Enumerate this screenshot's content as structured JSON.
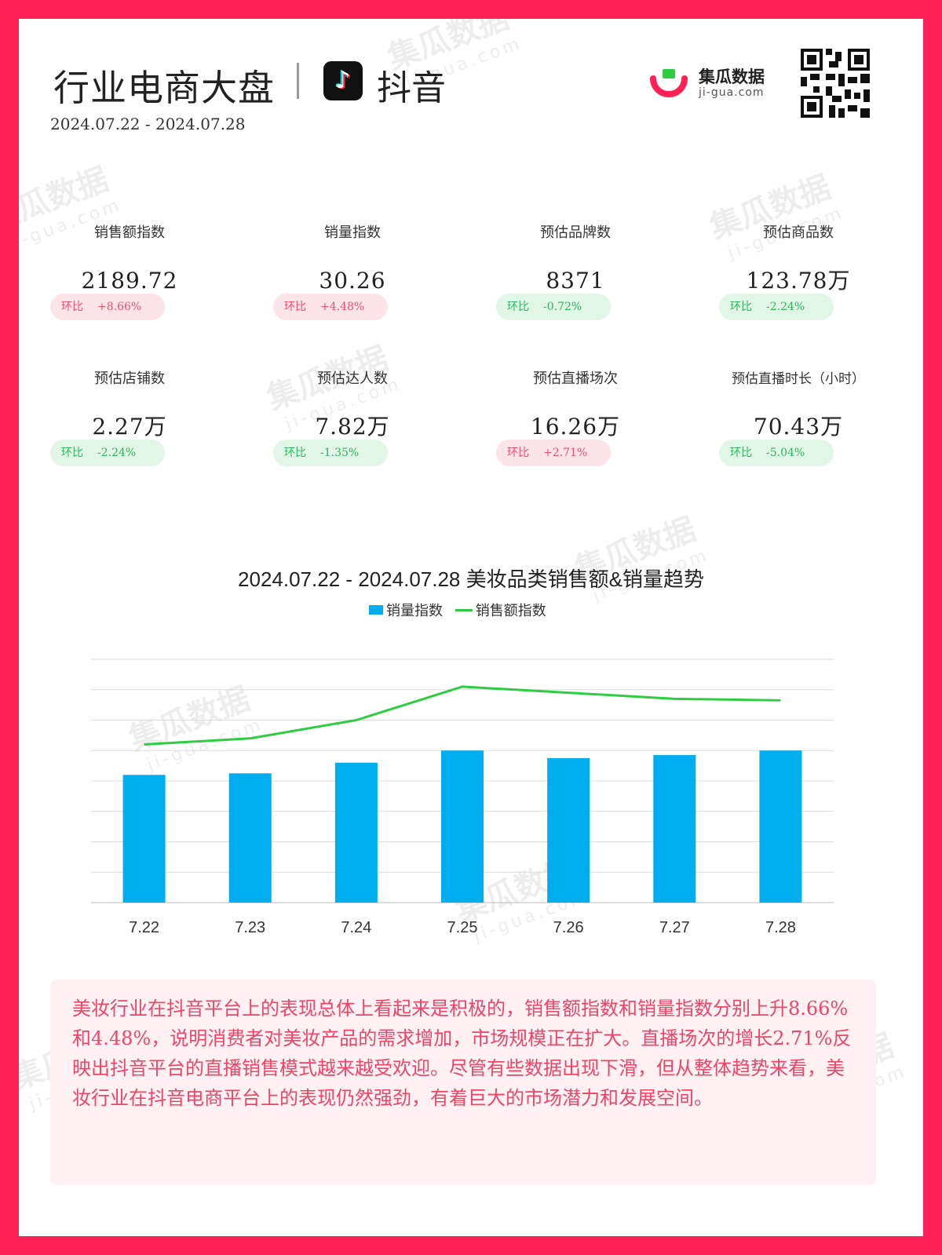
{
  "header": {
    "title": "行业电商大盘",
    "platform": "抖音",
    "date_range": "2024.07.22 - 2024.07.28",
    "brand_name": "集瓜数据",
    "brand_url": "ji-gua.com"
  },
  "metrics": [
    {
      "label": "销售额指数",
      "value": "2189.72",
      "change_label": "环比",
      "change": "+8.66%",
      "trend": "up"
    },
    {
      "label": "销量指数",
      "value": "30.26",
      "change_label": "环比",
      "change": "+4.48%",
      "trend": "up"
    },
    {
      "label": "预估品牌数",
      "value": "8371",
      "change_label": "环比",
      "change": "-0.72%",
      "trend": "down"
    },
    {
      "label": "预估商品数",
      "value": "123.78万",
      "change_label": "环比",
      "change": "-2.24%",
      "trend": "down"
    },
    {
      "label": "预估店铺数",
      "value": "2.27万",
      "change_label": "环比",
      "change": "-2.24%",
      "trend": "down"
    },
    {
      "label": "预估达人数",
      "value": "7.82万",
      "change_label": "环比",
      "change": "-1.35%",
      "trend": "down"
    },
    {
      "label": "预估直播场次",
      "value": "16.26万",
      "change_label": "环比",
      "change": "+2.71%",
      "trend": "up"
    },
    {
      "label": "预估直播时长（小时）",
      "value": "70.43万",
      "change_label": "环比",
      "change": "-5.04%",
      "trend": "down"
    }
  ],
  "chart_data": {
    "type": "bar",
    "title": "2024.07.22 - 2024.07.28 美妆品类销售额&销量趋势",
    "categories": [
      "7.22",
      "7.23",
      "7.24",
      "7.25",
      "7.26",
      "7.27",
      "7.28"
    ],
    "series": [
      {
        "name": "销量指数",
        "type": "bar",
        "color": "#00adee",
        "values": [
          4.2,
          4.25,
          4.6,
          5.0,
          4.75,
          4.85,
          5.0
        ]
      },
      {
        "name": "销售额指数",
        "type": "line",
        "color": "#2ecc40",
        "values": [
          5.2,
          5.4,
          6.0,
          7.1,
          6.9,
          6.7,
          6.65
        ]
      }
    ],
    "ylim": [
      0,
      8
    ],
    "grid": true,
    "legend": "top-center"
  },
  "summary": "美妆行业在抖音平台上的表现总体上看起来是积极的，销售额指数和销量指数分别上升8.66%和4.48%，说明消费者对美妆产品的需求增加，市场规模正在扩大。直播场次的增长2.71%反映出抖音平台的直播销售模式越来越受欢迎。尽管有些数据出现下滑，但从整体趋势来看，美妆行业在抖音电商平台上的表现仍然强劲，有着巨大的市场潜力和发展空间。",
  "watermark": {
    "name": "集瓜数据",
    "url": "ji-gua.com"
  }
}
